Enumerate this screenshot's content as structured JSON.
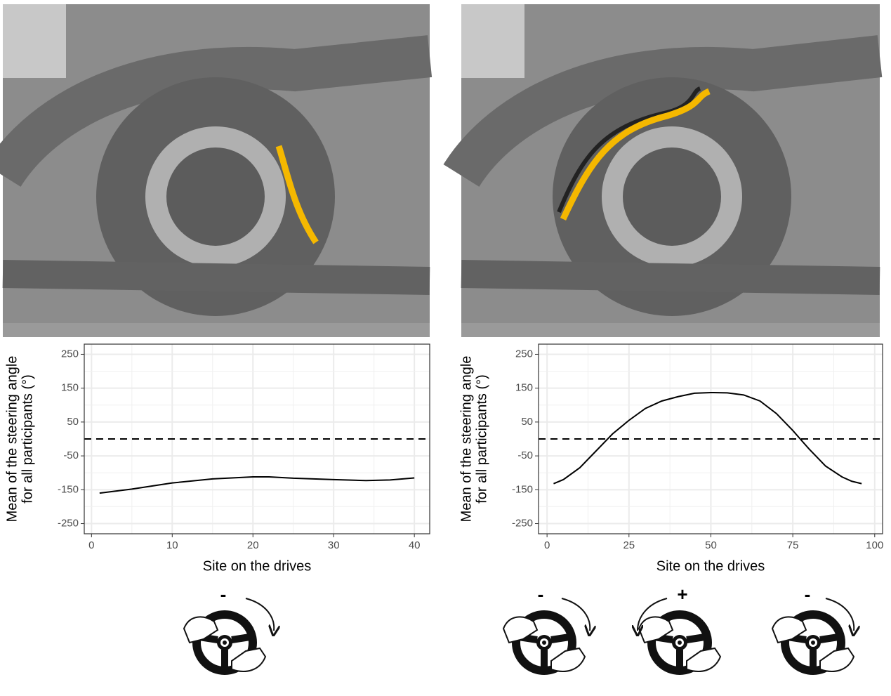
{
  "chart_data": [
    {
      "type": "line",
      "xlabel": "Site on the drives",
      "ylabel": [
        "Mean of the steering angle",
        "for all participants (°)"
      ],
      "x": [
        1,
        5,
        10,
        15,
        20,
        22,
        25,
        30,
        34,
        37,
        40
      ],
      "values": [
        -160,
        -148,
        -130,
        -118,
        -112,
        -112,
        -116,
        -120,
        -123,
        -121,
        -115
      ],
      "color": "#000000",
      "xlim": [
        -0.9,
        41.9
      ],
      "ylim": [
        -280,
        280
      ],
      "xticks": [
        0,
        10,
        20,
        30,
        40
      ],
      "yticks": [
        -250,
        -150,
        -50,
        50,
        150,
        250
      ],
      "hline": 0,
      "grid": true,
      "wheel_signs": [
        "-"
      ]
    },
    {
      "type": "line",
      "xlabel": "Site on the drives",
      "ylabel": [
        "Mean of the steering angle",
        "for all participants (°)"
      ],
      "x": [
        2,
        5,
        10,
        15,
        20,
        25,
        30,
        35,
        40,
        45,
        50,
        55,
        60,
        65,
        70,
        75,
        80,
        85,
        90,
        93,
        96
      ],
      "values": [
        -132,
        -120,
        -85,
        -35,
        15,
        55,
        90,
        112,
        125,
        135,
        137,
        136,
        130,
        112,
        75,
        25,
        -30,
        -80,
        -112,
        -125,
        -132
      ],
      "color": "#000000",
      "xlim": [
        -2.6,
        102.4
      ],
      "ylim": [
        -280,
        280
      ],
      "xticks": [
        0,
        25,
        50,
        75,
        100
      ],
      "yticks": [
        -250,
        -150,
        -50,
        50,
        150,
        250
      ],
      "hline": 0,
      "grid": true,
      "wheel_signs": [
        "-",
        "+",
        "-"
      ]
    }
  ]
}
